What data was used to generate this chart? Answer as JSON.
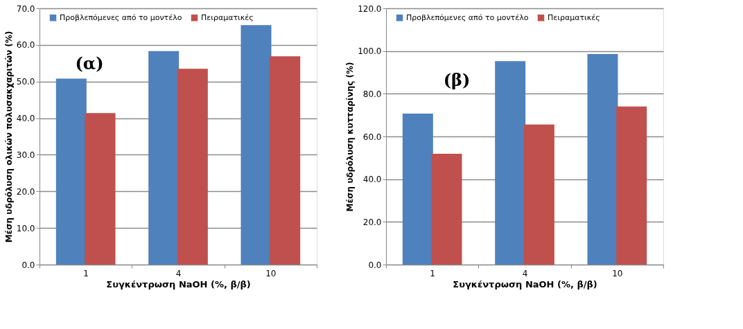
{
  "chart_data": [
    {
      "type": "bar",
      "xlabel": "Συγκέντρωση NaOH (%, β/β)",
      "ylabel": "Μέση υδρόλυση ολικών πολυσακχαριτών (%)",
      "categories": [
        "1",
        "4",
        "10"
      ],
      "series": [
        {
          "name": "Προβλεπόμενες από το μοντέλο",
          "color": "#4f81bd",
          "values": [
            50.8,
            58.3,
            65.4
          ]
        },
        {
          "name": "Πειραματικές",
          "color": "#c0504d",
          "values": [
            41.4,
            53.5,
            56.9
          ]
        }
      ],
      "ylim": [
        0,
        70
      ],
      "yticks": [
        {
          "value": 0,
          "label": "0.0"
        },
        {
          "value": 10,
          "label": "10.0"
        },
        {
          "value": 20,
          "label": "20.0"
        },
        {
          "value": 30,
          "label": "30.0"
        },
        {
          "value": 40,
          "label": "40.0"
        },
        {
          "value": 50,
          "label": "50.0"
        },
        {
          "value": 60,
          "label": "60.0"
        },
        {
          "value": 70,
          "label": "70.0"
        }
      ],
      "grid": "y",
      "legend": "top",
      "annotations": [
        "(α)"
      ]
    },
    {
      "type": "bar",
      "xlabel": "Συγκέντρωση NaOH (%, β/β)",
      "ylabel": "Μέση υδρόλυση κυτταρίνης (%)",
      "categories": [
        "1",
        "4",
        "10"
      ],
      "series": [
        {
          "name": "Προβλεπόμενες από το μοντέλο",
          "color": "#4f81bd",
          "values": [
            70.7,
            95.3,
            98.6
          ]
        },
        {
          "name": "Πειραματικές",
          "color": "#c0504d",
          "values": [
            51.9,
            65.6,
            74.0
          ]
        }
      ],
      "ylim": [
        0,
        120
      ],
      "yticks": [
        {
          "value": 0,
          "label": "0.0"
        },
        {
          "value": 20,
          "label": "20.0"
        },
        {
          "value": 40,
          "label": "40.0"
        },
        {
          "value": 60,
          "label": "60.0"
        },
        {
          "value": 80,
          "label": "80.0"
        },
        {
          "value": 100,
          "label": "100.0"
        },
        {
          "value": 120,
          "label": "120.0"
        }
      ],
      "grid": "y",
      "legend": "top",
      "annotations": [
        "(β)"
      ]
    }
  ]
}
